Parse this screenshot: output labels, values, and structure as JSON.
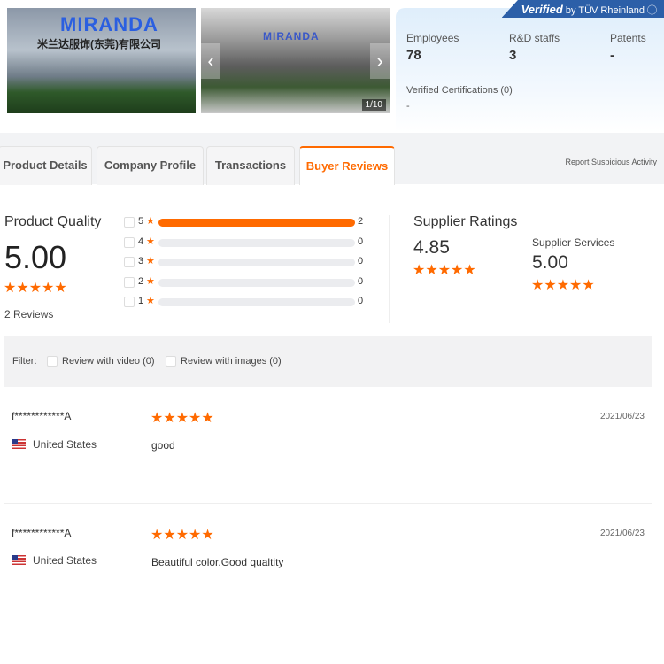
{
  "gallery": {
    "logo_text": "MIRANDA",
    "company_cn": "米兰达服饰(东莞)有限公司",
    "counter": "1/10",
    "prev": "‹",
    "next": "›"
  },
  "company_card": {
    "badge_verified": "Verified",
    "badge_by": "by TÜV Rheinland ⓘ",
    "stats": [
      {
        "label": "Employees",
        "value": "78"
      },
      {
        "label": "R&D staffs",
        "value": "3"
      },
      {
        "label": "Patents",
        "value": "-"
      }
    ],
    "certifications_label": "Verified Certifications (0)",
    "certifications_value": "-"
  },
  "tabs": [
    {
      "label": "Product Details"
    },
    {
      "label": "Company Profile"
    },
    {
      "label": "Transactions"
    },
    {
      "label": "Buyer Reviews",
      "active": true
    }
  ],
  "report_link": "Report Suspicious Activity",
  "product_quality": {
    "title": "Product Quality",
    "score": "5.00",
    "stars": "★★★★★",
    "reviews": "2 Reviews",
    "breakdown": [
      {
        "stars": "5",
        "count": "2",
        "fraction": 1.0
      },
      {
        "stars": "4",
        "count": "0",
        "fraction": 0
      },
      {
        "stars": "3",
        "count": "0",
        "fraction": 0
      },
      {
        "stars": "2",
        "count": "0",
        "fraction": 0
      },
      {
        "stars": "1",
        "count": "0",
        "fraction": 0
      }
    ]
  },
  "supplier_ratings": {
    "title": "Supplier Ratings",
    "score": "4.85",
    "stars": "★★★★★",
    "services_label": "Supplier Services",
    "services_score": "5.00",
    "services_stars": "★★★★★"
  },
  "filter": {
    "label": "Filter:",
    "video": "Review with video (0)",
    "images": "Review with images (0)"
  },
  "reviews": [
    {
      "name": "f************A",
      "country": "United States",
      "stars": "★★★★★",
      "text": "good",
      "date": "2021/06/23"
    },
    {
      "name": "f************A",
      "country": "United States",
      "stars": "★★★★★",
      "text": "Beautiful color.Good qualtity",
      "date": "2021/06/23"
    }
  ],
  "colors": {
    "accent": "#ff6a00",
    "badge": "#2c5fa8"
  }
}
